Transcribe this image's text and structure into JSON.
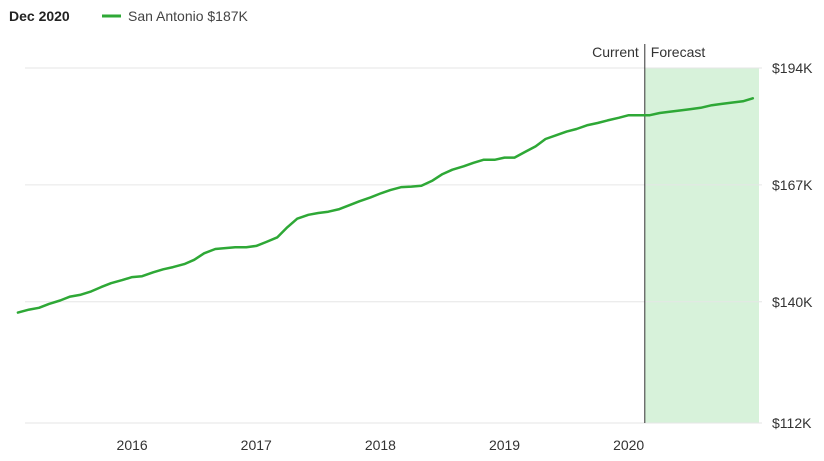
{
  "header": {
    "date": "Dec 2020",
    "series_label": "San Antonio $187K"
  },
  "colors": {
    "line": "#2ea836",
    "forecast_fill": "#d7f2da",
    "grid": "#e6e6e6",
    "divider": "#333333"
  },
  "regions": {
    "current_label": "Current",
    "forecast_label": "Forecast"
  },
  "chart_data": {
    "type": "line",
    "series": [
      {
        "name": "San Antonio",
        "x": [
          2015.08,
          2015.17,
          2015.25,
          2015.33,
          2015.42,
          2015.5,
          2015.58,
          2015.67,
          2015.75,
          2015.83,
          2015.92,
          2016.0,
          2016.08,
          2016.17,
          2016.25,
          2016.33,
          2016.42,
          2016.5,
          2016.58,
          2016.67,
          2016.75,
          2016.83,
          2016.92,
          2017.0,
          2017.08,
          2017.17,
          2017.25,
          2017.33,
          2017.42,
          2017.5,
          2017.58,
          2017.67,
          2017.75,
          2017.83,
          2017.92,
          2018.0,
          2018.08,
          2018.17,
          2018.25,
          2018.33,
          2018.42,
          2018.5,
          2018.58,
          2018.67,
          2018.75,
          2018.83,
          2018.92,
          2019.0,
          2019.08,
          2019.17,
          2019.25,
          2019.33,
          2019.42,
          2019.5,
          2019.58,
          2019.67,
          2019.75,
          2019.83,
          2019.92,
          2020.0,
          2020.08,
          2020.17,
          2020.25,
          2020.33,
          2020.42,
          2020.5,
          2020.58,
          2020.67,
          2020.75,
          2020.83,
          2020.92,
          2021.0
        ],
        "y": [
          137.5,
          138.2,
          138.6,
          139.5,
          140.3,
          141.2,
          141.6,
          142.4,
          143.4,
          144.3,
          145.0,
          145.7,
          145.9,
          146.8,
          147.5,
          148.0,
          148.7,
          149.7,
          151.2,
          152.2,
          152.4,
          152.6,
          152.6,
          152.9,
          153.8,
          154.9,
          157.2,
          159.2,
          160.1,
          160.5,
          160.8,
          161.4,
          162.3,
          163.2,
          164.1,
          165.0,
          165.8,
          166.5,
          166.6,
          166.8,
          168.0,
          169.5,
          170.5,
          171.3,
          172.1,
          172.8,
          172.8,
          173.3,
          173.3,
          174.7,
          175.9,
          177.6,
          178.5,
          179.3,
          179.9,
          180.8,
          181.3,
          181.9,
          182.5,
          183.1,
          183.1,
          183.1,
          183.6,
          183.9,
          184.2,
          184.5,
          184.8,
          185.4,
          185.7,
          186.0,
          186.3,
          187.0
        ]
      }
    ],
    "forecast_start": 2020.13,
    "xlim": [
      2015.0,
      2021.05
    ],
    "ylim": [
      112,
      194
    ],
    "x_ticks": [
      2016,
      2017,
      2018,
      2019,
      2020
    ],
    "x_tick_labels": [
      "2016",
      "2017",
      "2018",
      "2019",
      "2020"
    ],
    "y_ticks": [
      112,
      140,
      167,
      194
    ],
    "y_tick_labels": [
      "$112K",
      "$140K",
      "$167K",
      "$194K"
    ],
    "grid": true,
    "legend_position": "top-left"
  }
}
